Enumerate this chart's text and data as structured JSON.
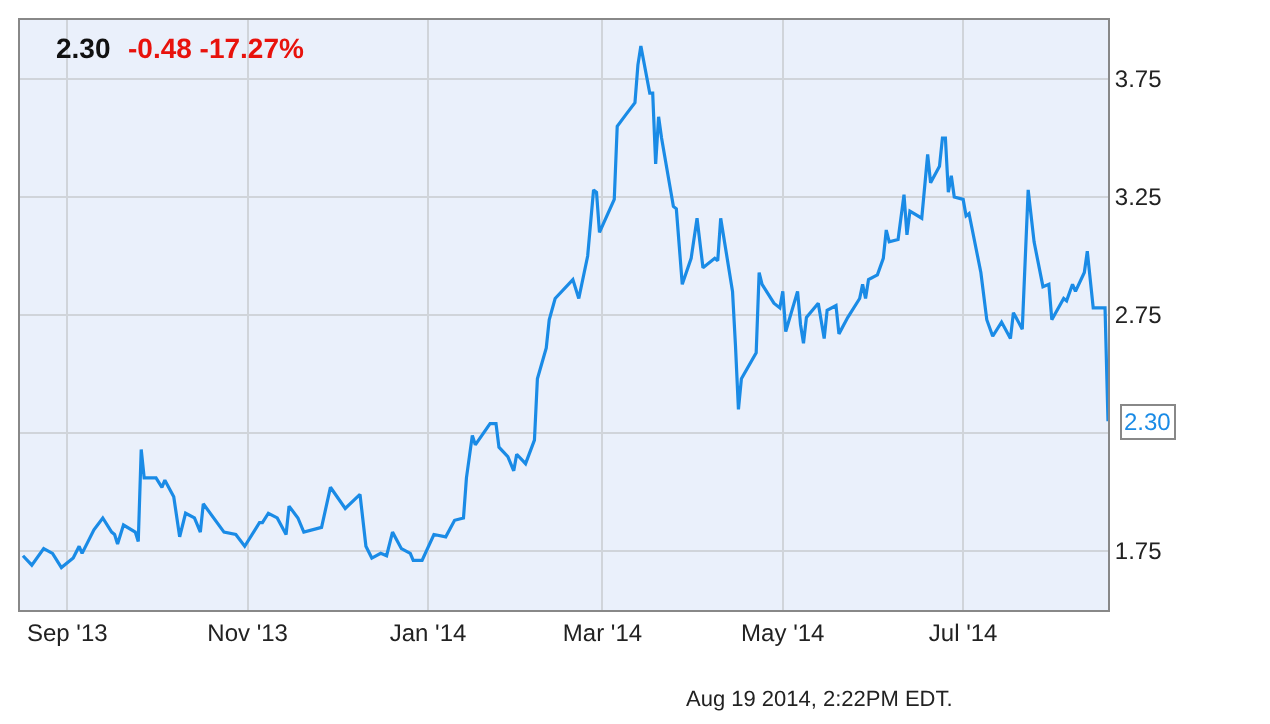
{
  "chart_data": {
    "type": "line",
    "title": "2.30",
    "subtitle": "-0.48 -17.27%",
    "annotations": [
      "Aug 19 2014, 2:22PM EDT.",
      {
        "text": "2.30",
        "x": "2014-08-19",
        "y": 2.3
      }
    ],
    "x": [
      "2013-08-17",
      "2013-08-20",
      "2013-08-24",
      "2013-08-27",
      "2013-08-30",
      "2013-09-03",
      "2013-09-05",
      "2013-09-06",
      "2013-09-10",
      "2013-09-13",
      "2013-09-16",
      "2013-09-17",
      "2013-09-18",
      "2013-09-20",
      "2013-09-24",
      "2013-09-25",
      "2013-09-26",
      "2013-09-27",
      "2013-10-01",
      "2013-10-03",
      "2013-10-04",
      "2013-10-07",
      "2013-10-09",
      "2013-10-11",
      "2013-10-14",
      "2013-10-16",
      "2013-10-17",
      "2013-10-24",
      "2013-10-28",
      "2013-10-31",
      "2013-11-05",
      "2013-11-06",
      "2013-11-08",
      "2013-11-11",
      "2013-11-14",
      "2013-11-15",
      "2013-11-18",
      "2013-11-20",
      "2013-11-26",
      "2013-11-29",
      "2013-12-04",
      "2013-12-09",
      "2013-12-11",
      "2013-12-13",
      "2013-12-16",
      "2013-12-18",
      "2013-12-20",
      "2013-12-23",
      "2013-12-26",
      "2013-12-27",
      "2013-12-30",
      "2014-01-03",
      "2014-01-07",
      "2014-01-10",
      "2014-01-13",
      "2014-01-14",
      "2014-01-16",
      "2014-01-17",
      "2014-01-22",
      "2014-01-24",
      "2014-01-25",
      "2014-01-28",
      "2014-01-30",
      "2014-01-31",
      "2014-02-03",
      "2014-02-06",
      "2014-02-07",
      "2014-02-10",
      "2014-02-11",
      "2014-02-13",
      "2014-02-19",
      "2014-02-21",
      "2014-02-24",
      "2014-02-26",
      "2014-02-27",
      "2014-02-28",
      "2014-03-05",
      "2014-03-06",
      "2014-03-09",
      "2014-03-12",
      "2014-03-13",
      "2014-03-14",
      "2014-03-17",
      "2014-03-18",
      "2014-03-19",
      "2014-03-20",
      "2014-03-21",
      "2014-03-25",
      "2014-03-26",
      "2014-03-28",
      "2014-03-31",
      "2014-04-02",
      "2014-04-04",
      "2014-04-08",
      "2014-04-09",
      "2014-04-10",
      "2014-04-14",
      "2014-04-15",
      "2014-04-16",
      "2014-04-17",
      "2014-04-22",
      "2014-04-23",
      "2014-04-24",
      "2014-04-28",
      "2014-04-30",
      "2014-05-01",
      "2014-05-02",
      "2014-05-06",
      "2014-05-07",
      "2014-05-08",
      "2014-05-09",
      "2014-05-13",
      "2014-05-15",
      "2014-05-16",
      "2014-05-19",
      "2014-05-20",
      "2014-05-23",
      "2014-05-27",
      "2014-05-28",
      "2014-05-29",
      "2014-05-30",
      "2014-06-02",
      "2014-06-04",
      "2014-06-05",
      "2014-06-06",
      "2014-06-09",
      "2014-06-11",
      "2014-06-12",
      "2014-06-13",
      "2014-06-17",
      "2014-06-19",
      "2014-06-20",
      "2014-06-23",
      "2014-06-24",
      "2014-06-25",
      "2014-06-26",
      "2014-06-27",
      "2014-06-28",
      "2014-07-01",
      "2014-07-02",
      "2014-07-03",
      "2014-07-07",
      "2014-07-09",
      "2014-07-11",
      "2014-07-14",
      "2014-07-17",
      "2014-07-18",
      "2014-07-21",
      "2014-07-23",
      "2014-07-25",
      "2014-07-28",
      "2014-07-30",
      "2014-07-31",
      "2014-08-04",
      "2014-08-05",
      "2014-08-07",
      "2014-08-08",
      "2014-08-11",
      "2014-08-12",
      "2014-08-14",
      "2014-08-18",
      "2014-08-19"
    ],
    "series": [
      {
        "color": "#1a8be6",
        "values": [
          1.73,
          1.69,
          1.76,
          1.74,
          1.68,
          1.72,
          1.77,
          1.74,
          1.84,
          1.89,
          1.83,
          1.82,
          1.78,
          1.86,
          1.83,
          1.79,
          2.18,
          2.06,
          2.06,
          2.02,
          2.05,
          1.98,
          1.81,
          1.91,
          1.89,
          1.83,
          1.95,
          1.83,
          1.82,
          1.77,
          1.87,
          1.87,
          1.91,
          1.89,
          1.82,
          1.94,
          1.89,
          1.83,
          1.85,
          2.02,
          1.93,
          1.99,
          1.77,
          1.72,
          1.74,
          1.73,
          1.83,
          1.76,
          1.74,
          1.71,
          1.71,
          1.82,
          1.81,
          1.88,
          1.89,
          2.06,
          2.24,
          2.2,
          2.29,
          2.29,
          2.19,
          2.15,
          2.09,
          2.16,
          2.12,
          2.22,
          2.48,
          2.61,
          2.73,
          2.82,
          2.9,
          2.82,
          3.0,
          3.28,
          3.27,
          3.1,
          3.24,
          3.55,
          3.6,
          3.65,
          3.81,
          3.89,
          3.69,
          3.69,
          3.39,
          3.59,
          3.5,
          3.21,
          3.2,
          2.88,
          2.99,
          3.16,
          2.95,
          2.99,
          2.98,
          3.16,
          2.85,
          2.62,
          2.35,
          2.48,
          2.59,
          2.93,
          2.88,
          2.8,
          2.78,
          2.85,
          2.68,
          2.85,
          2.71,
          2.63,
          2.74,
          2.8,
          2.65,
          2.77,
          2.79,
          2.67,
          2.74,
          2.82,
          2.88,
          2.82,
          2.9,
          2.92,
          2.99,
          3.11,
          3.06,
          3.07,
          3.26,
          3.09,
          3.19,
          3.16,
          3.43,
          3.31,
          3.38,
          3.5,
          3.5,
          3.27,
          3.34,
          3.25,
          3.24,
          3.17,
          3.18,
          2.93,
          2.73,
          2.66,
          2.72,
          2.65,
          2.76,
          2.69,
          3.28,
          3.06,
          2.87,
          2.88,
          2.73,
          2.82,
          2.81,
          2.88,
          2.85,
          2.93,
          3.02,
          2.78,
          2.78,
          2.3
        ]
      }
    ],
    "xlim": [
      "2013-08-16",
      "2014-08-19"
    ],
    "xticks": [
      {
        "value": "2013-09-01",
        "label": "Sep '13"
      },
      {
        "value": "2013-11-01",
        "label": "Nov '13"
      },
      {
        "value": "2014-01-01",
        "label": "Jan '14"
      },
      {
        "value": "2014-03-01",
        "label": "Mar '14"
      },
      {
        "value": "2014-05-01",
        "label": "May '14"
      },
      {
        "value": "2014-07-01",
        "label": "Jul '14"
      }
    ],
    "ylim": [
      1.5,
      4.0
    ],
    "yticks": [
      1.75,
      {
        "value": 2.25,
        "label": null
      },
      2.75,
      3.25,
      3.75
    ],
    "grid": true,
    "legend": false
  }
}
